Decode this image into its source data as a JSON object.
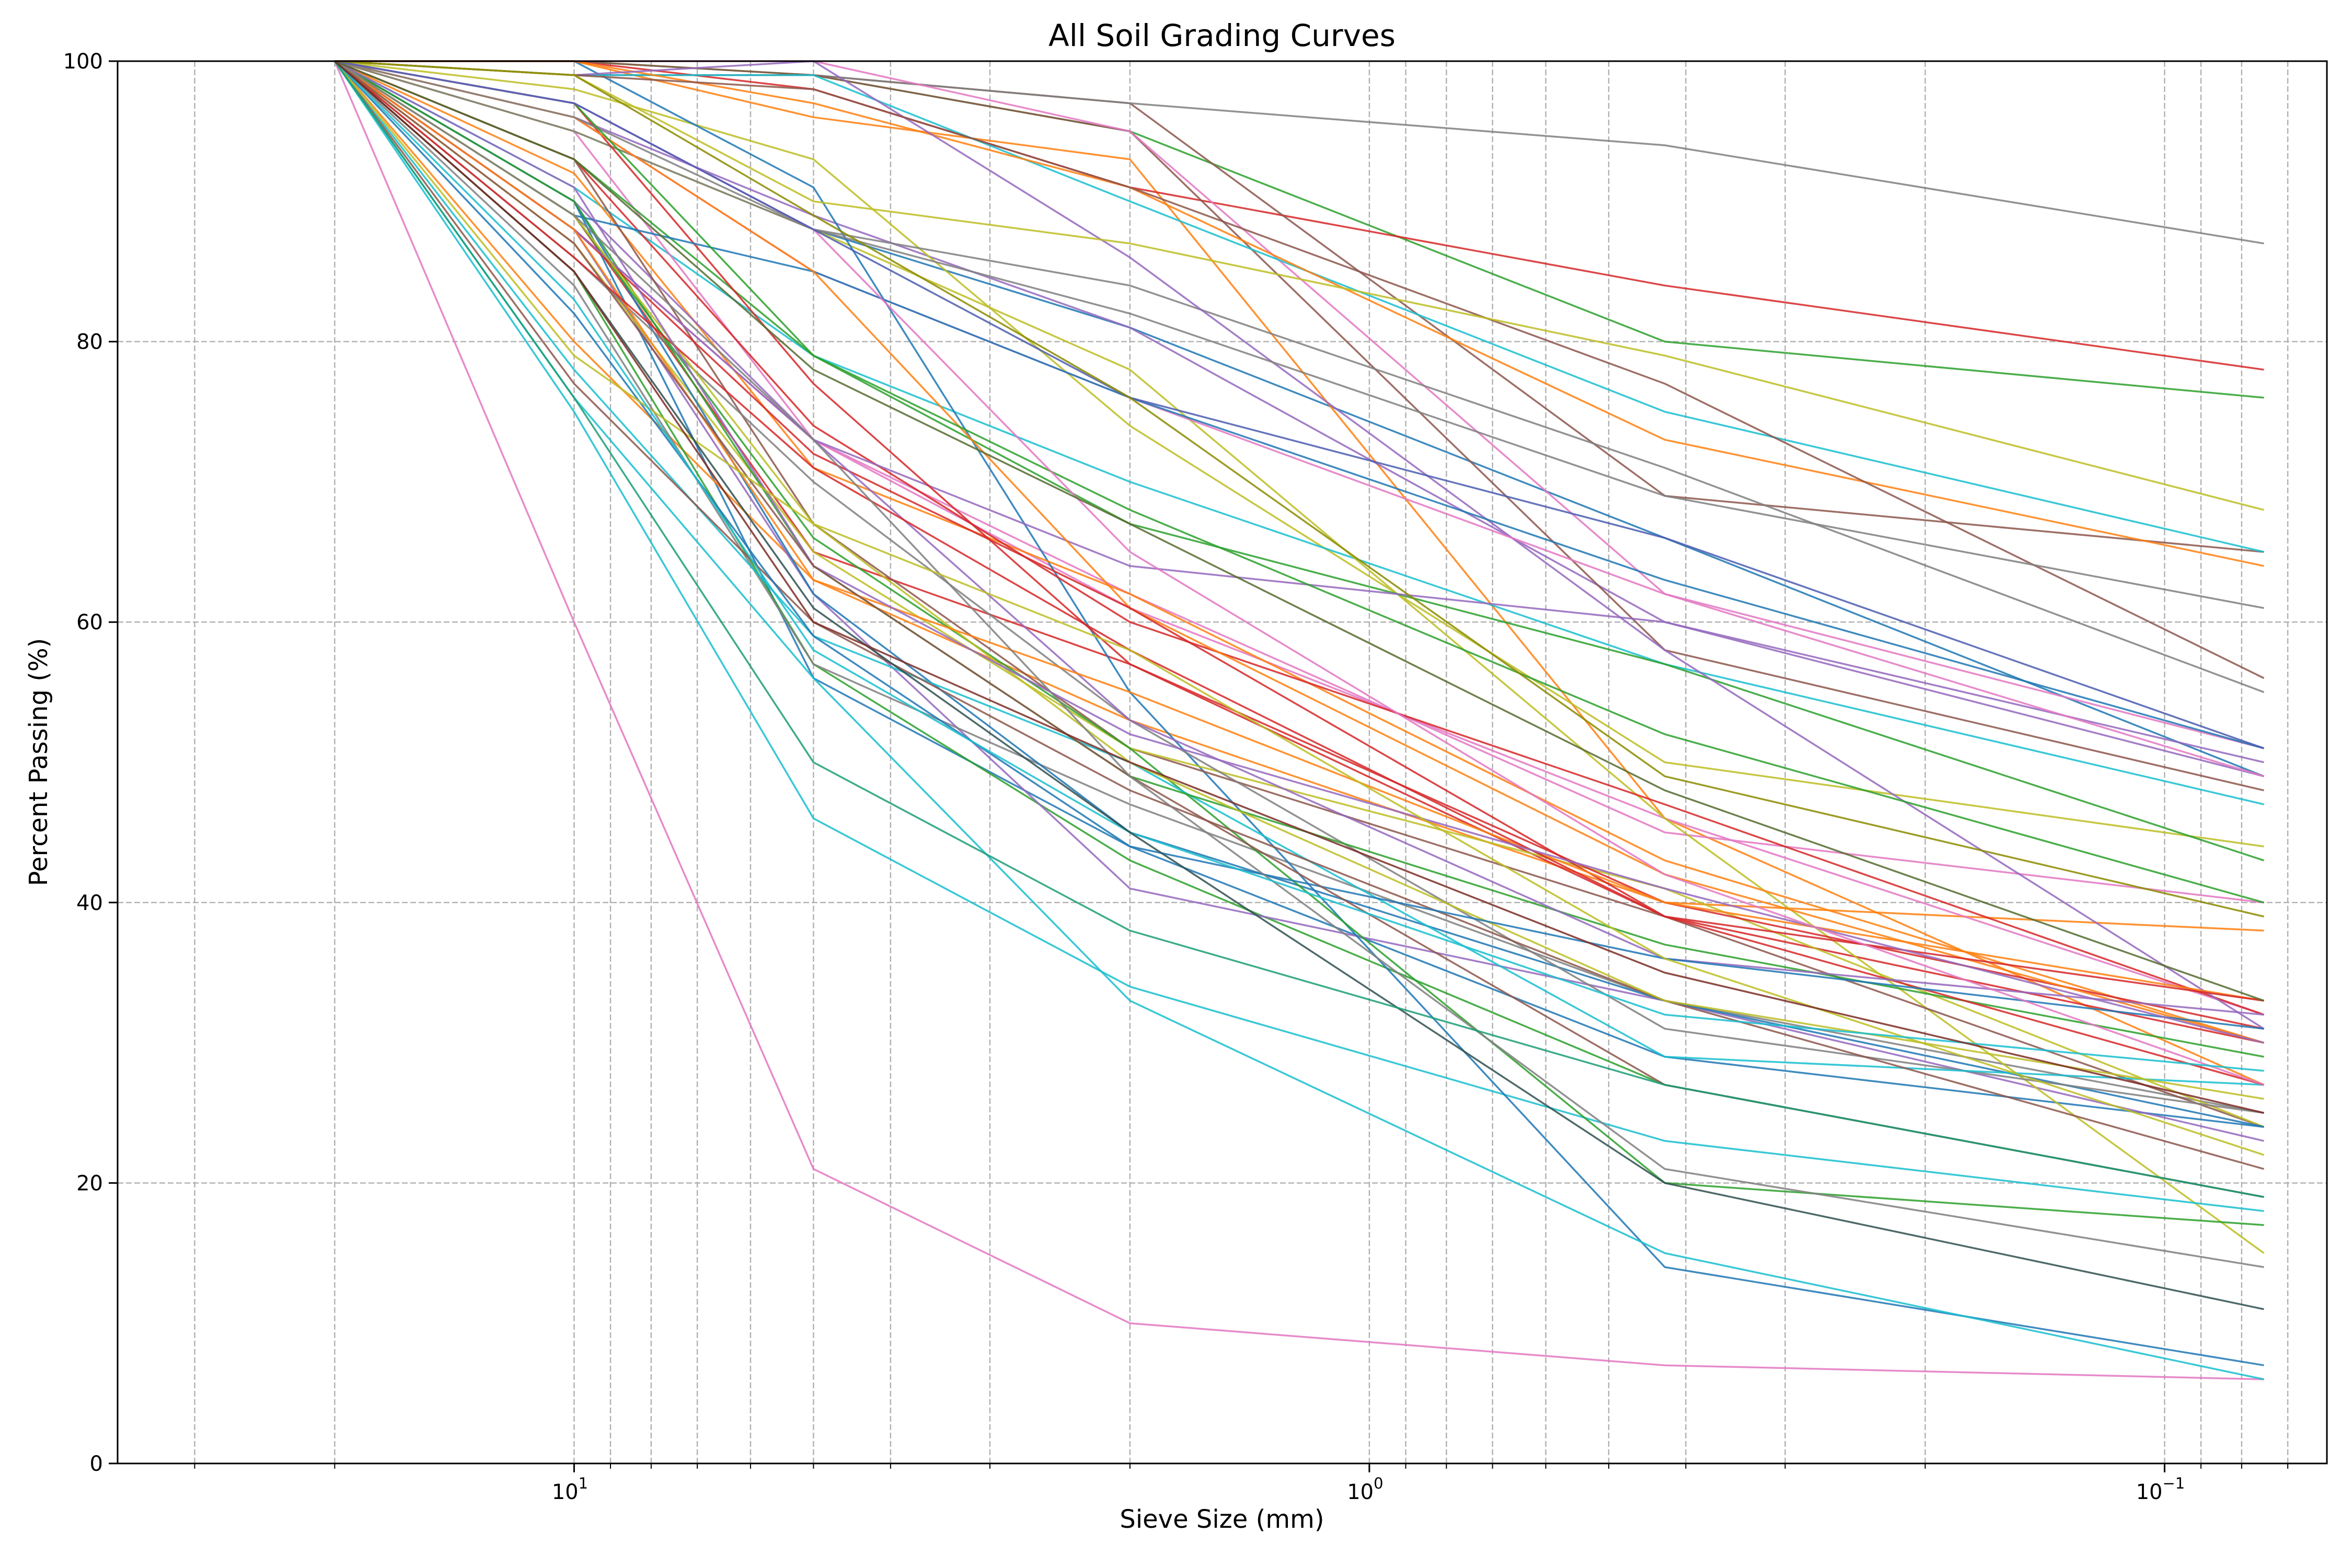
{
  "chart_data": {
    "type": "line",
    "title": "All Soil Grading Curves",
    "xlabel": "Sieve Size (mm)",
    "ylabel": "Percent Passing (%)",
    "x_scale": "log",
    "x_reversed": true,
    "xlim": [
      37.5,
      0.0625
    ],
    "ylim": [
      0,
      100
    ],
    "grid": true,
    "legend": "none",
    "x_major_ticks": [
      {
        "value": 10,
        "base": "10",
        "exp": "1"
      },
      {
        "value": 1,
        "base": "10",
        "exp": "0"
      },
      {
        "value": 0.1,
        "base": "10",
        "exp": "−1"
      }
    ],
    "y_ticks": [
      "0",
      "20",
      "40",
      "60",
      "80",
      "100"
    ],
    "x": [
      20,
      10,
      5,
      2,
      0.425,
      0.075
    ],
    "series": [
      {
        "color": "#1f77b4",
        "values": [
          100,
          97,
          88,
          81,
          66,
          49
        ]
      },
      {
        "color": "#ff7f0e",
        "values": [
          100,
          100,
          96,
          93,
          46,
          27
        ]
      },
      {
        "color": "#2ca02c",
        "values": [
          100,
          100,
          99,
          95,
          80,
          76
        ]
      },
      {
        "color": "#d62728",
        "values": [
          100,
          100,
          98,
          91,
          84,
          78
        ]
      },
      {
        "color": "#9467bd",
        "values": [
          100,
          96,
          89,
          81,
          60,
          50
        ]
      },
      {
        "color": "#8c564b",
        "values": [
          100,
          100,
          99,
          97,
          69,
          65
        ]
      },
      {
        "color": "#e377c2",
        "values": [
          100,
          88,
          73,
          62,
          45,
          40
        ]
      },
      {
        "color": "#7f7f7f",
        "values": [
          100,
          99,
          99,
          97,
          94,
          87
        ]
      },
      {
        "color": "#bcbd22",
        "values": [
          100,
          98,
          93,
          74,
          50,
          44
        ]
      },
      {
        "color": "#17becf",
        "values": [
          100,
          91,
          79,
          70,
          57,
          47
        ]
      },
      {
        "color": "#1f77b4",
        "values": [
          100,
          90,
          56,
          44,
          29,
          24
        ]
      },
      {
        "color": "#ff7f0e",
        "values": [
          100,
          80,
          63,
          53,
          40,
          38
        ]
      },
      {
        "color": "#2ca02c",
        "values": [
          100,
          85,
          57,
          43,
          27,
          19
        ]
      },
      {
        "color": "#d62728",
        "values": [
          100,
          89,
          65,
          57,
          39,
          30
        ]
      },
      {
        "color": "#9467bd",
        "values": [
          100,
          88,
          62,
          41,
          33,
          23
        ]
      },
      {
        "color": "#8c564b",
        "values": [
          100,
          99,
          99,
          95,
          58,
          48
        ]
      },
      {
        "color": "#e377c2",
        "values": [
          100,
          95,
          73,
          61,
          46,
          32
        ]
      },
      {
        "color": "#7f7f7f",
        "values": [
          100,
          84,
          57,
          47,
          33,
          25
        ]
      },
      {
        "color": "#bcbd22",
        "values": [
          100,
          95,
          88,
          78,
          46,
          15
        ]
      },
      {
        "color": "#17becf",
        "values": [
          100,
          75,
          46,
          34,
          23,
          18
        ]
      },
      {
        "color": "#1f77b4",
        "values": [
          100,
          100,
          91,
          55,
          14,
          7
        ]
      },
      {
        "color": "#ff7f0e",
        "values": [
          100,
          92,
          71,
          62,
          43,
          30
        ]
      },
      {
        "color": "#2ca02c",
        "values": [
          100,
          93,
          79,
          67,
          57,
          43
        ]
      },
      {
        "color": "#d62728",
        "values": [
          100,
          93,
          74,
          60,
          47,
          32
        ]
      },
      {
        "color": "#9467bd",
        "values": [
          100,
          90,
          73,
          64,
          60,
          49
        ]
      },
      {
        "color": "#8c564b",
        "values": [
          100,
          93,
          67,
          51,
          39,
          24
        ]
      },
      {
        "color": "#e377c2",
        "values": [
          100,
          100,
          100,
          95,
          62,
          51
        ]
      },
      {
        "color": "#7f7f7f",
        "values": [
          100,
          95,
          88,
          84,
          71,
          55
        ]
      },
      {
        "color": "#bcbd22",
        "values": [
          100,
          87,
          65,
          51,
          41,
          24
        ]
      },
      {
        "color": "#17becf",
        "values": [
          100,
          99,
          99,
          90,
          75,
          65
        ]
      },
      {
        "color": "#1f77b4",
        "values": [
          100,
          90,
          62,
          45,
          33,
          24
        ]
      },
      {
        "color": "#ff7f0e",
        "values": [
          100,
          100,
          97,
          91,
          73,
          64
        ]
      },
      {
        "color": "#2ca02c",
        "values": [
          100,
          89,
          66,
          51,
          20,
          17
        ]
      },
      {
        "color": "#d62728",
        "values": [
          100,
          97,
          77,
          57,
          40,
          31
        ]
      },
      {
        "color": "#9467bd",
        "values": [
          100,
          99,
          100,
          86,
          58,
          31
        ]
      },
      {
        "color": "#8c564b",
        "values": [
          100,
          99,
          98,
          91,
          77,
          56
        ]
      },
      {
        "color": "#e377c2",
        "values": [
          100,
          96,
          85,
          76,
          62,
          49
        ]
      },
      {
        "color": "#7f7f7f",
        "values": [
          100,
          86,
          70,
          53,
          31,
          25
        ]
      },
      {
        "color": "#bcbd22",
        "values": [
          100,
          99,
          90,
          87,
          79,
          68
        ]
      },
      {
        "color": "#17becf",
        "values": [
          100,
          78,
          59,
          50,
          29,
          27
        ]
      },
      {
        "color": "#1f77b4",
        "values": [
          100,
          89,
          85,
          76,
          63,
          51
        ]
      },
      {
        "color": "#ff7f0e",
        "values": [
          100,
          96,
          85,
          61,
          42,
          30
        ]
      },
      {
        "color": "#2ca02c",
        "values": [
          100,
          90,
          64,
          49,
          37,
          29
        ]
      },
      {
        "color": "#d62728",
        "values": [
          100,
          88,
          72,
          61,
          39,
          27
        ]
      },
      {
        "color": "#9467bd",
        "values": [
          100,
          88,
          73,
          53,
          36,
          32
        ]
      },
      {
        "color": "#8c564b",
        "values": [
          100,
          77,
          60,
          48,
          33,
          21
        ]
      },
      {
        "color": "#e377c2",
        "values": [
          100,
          60,
          21,
          10,
          7,
          6
        ]
      },
      {
        "color": "#7f7f7f",
        "values": [
          100,
          96,
          88,
          82,
          69,
          61
        ]
      },
      {
        "color": "#bcbd22",
        "values": [
          100,
          89,
          67,
          50,
          33,
          26
        ]
      },
      {
        "color": "#17becf",
        "values": [
          100,
          76,
          56,
          33,
          15,
          6
        ]
      },
      {
        "color": "#1f77b4",
        "values": [
          100,
          82,
          59,
          44,
          36,
          31
        ]
      },
      {
        "color": "#ff7f0e",
        "values": [
          100,
          88,
          63,
          55,
          40,
          33
        ]
      },
      {
        "color": "#2ca02c",
        "values": [
          100,
          97,
          79,
          68,
          52,
          40
        ]
      },
      {
        "color": "#d62728",
        "values": [
          100,
          86,
          71,
          58,
          39,
          33
        ]
      },
      {
        "color": "#9467bd",
        "values": [
          100,
          91,
          64,
          52,
          41,
          30
        ]
      },
      {
        "color": "#8c564b",
        "values": [
          100,
          87,
          64,
          49,
          27,
          19
        ]
      },
      {
        "color": "#e377c2",
        "values": [
          100,
          97,
          88,
          65,
          42,
          27
        ]
      },
      {
        "color": "#7f7f7f",
        "values": [
          100,
          89,
          73,
          49,
          21,
          14
        ]
      },
      {
        "color": "#bcbd22",
        "values": [
          100,
          79,
          67,
          58,
          36,
          22
        ]
      },
      {
        "color": "#17becf",
        "values": [
          100,
          83,
          58,
          45,
          32,
          28
        ]
      },
      {
        "color": "#2f4f4f",
        "values": [
          100,
          85,
          61,
          45,
          20,
          11
        ]
      },
      {
        "color": "#556b2f",
        "values": [
          100,
          93,
          78,
          67,
          48,
          33
        ]
      },
      {
        "color": "#4b5db0",
        "values": [
          100,
          97,
          88,
          76,
          66,
          51
        ]
      },
      {
        "color": "#1b9e77",
        "values": [
          100,
          76,
          50,
          38,
          27,
          19
        ]
      },
      {
        "color": "#7b2d26",
        "values": [
          100,
          85,
          60,
          50,
          35,
          25
        ]
      },
      {
        "color": "#8b8b00",
        "values": [
          100,
          99,
          89,
          76,
          49,
          39
        ]
      }
    ]
  }
}
